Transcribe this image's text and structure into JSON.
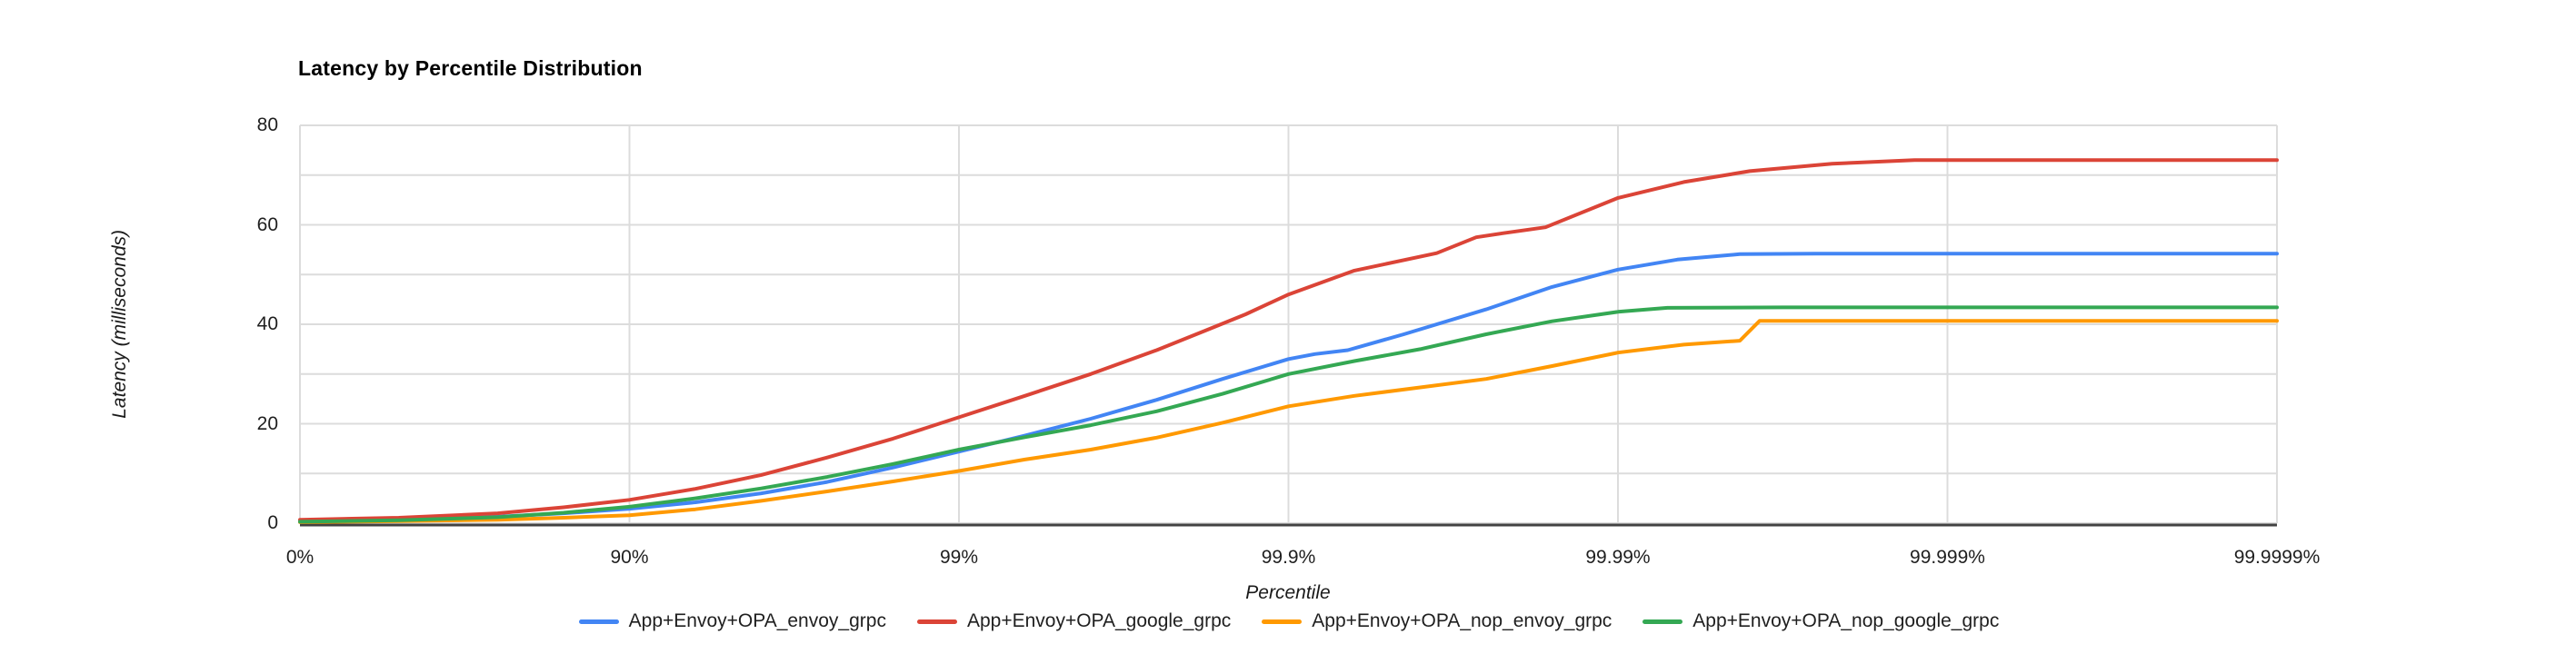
{
  "chart_data": {
    "type": "line",
    "title": "Latency by Percentile Distribution",
    "xlabel": "Percentile",
    "ylabel": "Latency (milliseconds)",
    "x_axis": {
      "scale": "percentile-nines-log",
      "tick_labels": [
        "0%",
        "90%",
        "99%",
        "99.9%",
        "99.99%",
        "99.999%",
        "99.9999%"
      ],
      "tick_nines": [
        0,
        1,
        2,
        3,
        4,
        5,
        6
      ]
    },
    "y_axis": {
      "min": 0,
      "max": 80,
      "major_step": 20,
      "minor_step": 10,
      "tick_labels": [
        "0",
        "20",
        "40",
        "60",
        "80"
      ],
      "tick_values": [
        0,
        20,
        40,
        60,
        80
      ]
    },
    "grid": true,
    "legend_position": "bottom",
    "style": {
      "background": "#ffffff",
      "grid_color": "#dcdcdc",
      "axis_color": "#424242",
      "text_color": "#1f1f1f",
      "line_width": 4
    },
    "series": [
      {
        "name": "App+Envoy+OPA_envoy_grpc",
        "color": "#4285f4",
        "points_nines_ms": [
          [
            0,
            0.4
          ],
          [
            0.3,
            0.7
          ],
          [
            0.6,
            1.3
          ],
          [
            0.8,
            2.0
          ],
          [
            1,
            2.9
          ],
          [
            1.2,
            4.2
          ],
          [
            1.4,
            6.0
          ],
          [
            1.6,
            8.3
          ],
          [
            1.8,
            11.2
          ],
          [
            2,
            14.4
          ],
          [
            2.2,
            17.6
          ],
          [
            2.4,
            21.0
          ],
          [
            2.6,
            24.8
          ],
          [
            2.8,
            29.0
          ],
          [
            3,
            33.0
          ],
          [
            3.08,
            34.0
          ],
          [
            3.18,
            34.8
          ],
          [
            3.35,
            38.0
          ],
          [
            3.6,
            43.0
          ],
          [
            3.8,
            47.5
          ],
          [
            4,
            51.0
          ],
          [
            4.18,
            53.0
          ],
          [
            4.37,
            54.1
          ],
          [
            4.6,
            54.2
          ],
          [
            5,
            54.2
          ],
          [
            6,
            54.2
          ]
        ]
      },
      {
        "name": "App+Envoy+OPA_google_grpc",
        "color": "#db4437",
        "points_nines_ms": [
          [
            0,
            0.7
          ],
          [
            0.3,
            1.1
          ],
          [
            0.6,
            2.0
          ],
          [
            0.8,
            3.2
          ],
          [
            1,
            4.7
          ],
          [
            1.2,
            6.9
          ],
          [
            1.4,
            9.7
          ],
          [
            1.6,
            13.2
          ],
          [
            1.8,
            17.0
          ],
          [
            2,
            21.3
          ],
          [
            2.2,
            25.6
          ],
          [
            2.4,
            30.0
          ],
          [
            2.6,
            34.8
          ],
          [
            2.75,
            38.8
          ],
          [
            2.87,
            42.0
          ],
          [
            3,
            46.0
          ],
          [
            3.2,
            50.8
          ],
          [
            3.45,
            54.3
          ],
          [
            3.57,
            57.5
          ],
          [
            3.65,
            58.3
          ],
          [
            3.78,
            59.5
          ],
          [
            4,
            65.4
          ],
          [
            4.2,
            68.6
          ],
          [
            4.4,
            70.8
          ],
          [
            4.65,
            72.3
          ],
          [
            4.9,
            73.0
          ],
          [
            5.5,
            73.0
          ],
          [
            6,
            73.0
          ]
        ]
      },
      {
        "name": "App+Envoy+OPA_nop_envoy_grpc",
        "color": "#ff9900",
        "points_nines_ms": [
          [
            0,
            0.2
          ],
          [
            0.3,
            0.4
          ],
          [
            0.6,
            0.7
          ],
          [
            0.8,
            1.1
          ],
          [
            1,
            1.6
          ],
          [
            1.2,
            2.8
          ],
          [
            1.4,
            4.5
          ],
          [
            1.6,
            6.4
          ],
          [
            1.8,
            8.4
          ],
          [
            2,
            10.5
          ],
          [
            2.2,
            12.8
          ],
          [
            2.4,
            14.8
          ],
          [
            2.6,
            17.2
          ],
          [
            2.8,
            20.2
          ],
          [
            3,
            23.5
          ],
          [
            3.2,
            25.6
          ],
          [
            3.4,
            27.3
          ],
          [
            3.6,
            29.0
          ],
          [
            3.8,
            31.6
          ],
          [
            4,
            34.3
          ],
          [
            4.2,
            35.9
          ],
          [
            4.37,
            36.7
          ],
          [
            4.43,
            40.7
          ],
          [
            4.7,
            40.7
          ],
          [
            5,
            40.7
          ],
          [
            6,
            40.7
          ]
        ]
      },
      {
        "name": "App+Envoy+OPA_nop_google_grpc",
        "color": "#34a853",
        "points_nines_ms": [
          [
            0,
            0.3
          ],
          [
            0.3,
            0.6
          ],
          [
            0.6,
            1.2
          ],
          [
            0.8,
            2.1
          ],
          [
            1,
            3.3
          ],
          [
            1.2,
            5.0
          ],
          [
            1.4,
            7.0
          ],
          [
            1.6,
            9.3
          ],
          [
            1.8,
            11.9
          ],
          [
            2,
            14.8
          ],
          [
            2.2,
            17.3
          ],
          [
            2.4,
            19.7
          ],
          [
            2.6,
            22.5
          ],
          [
            2.8,
            26.0
          ],
          [
            3,
            30.0
          ],
          [
            3.2,
            32.6
          ],
          [
            3.4,
            35.0
          ],
          [
            3.6,
            38.0
          ],
          [
            3.8,
            40.6
          ],
          [
            4,
            42.5
          ],
          [
            4.15,
            43.3
          ],
          [
            4.5,
            43.4
          ],
          [
            5,
            43.4
          ],
          [
            6,
            43.4
          ]
        ]
      }
    ]
  }
}
